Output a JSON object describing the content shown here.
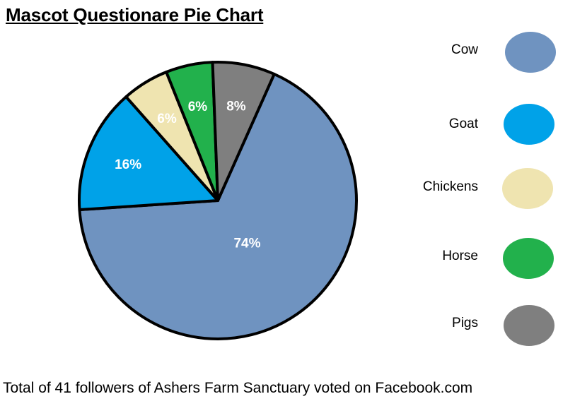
{
  "chart_data": {
    "type": "pie",
    "title": "Mascot Questionare Pie Chart",
    "slices": [
      {
        "label": "Cow",
        "value": 74,
        "display": "74%",
        "color": "#6F93C0"
      },
      {
        "label": "Goat",
        "value": 16,
        "display": "16%",
        "color": "#00A2E8"
      },
      {
        "label": "Chickens",
        "value": 6,
        "display": "6%",
        "color": "#EFE4B0"
      },
      {
        "label": "Horse",
        "value": 6,
        "display": "6%",
        "color": "#22B14C"
      },
      {
        "label": "Pigs",
        "value": 8,
        "display": "8%",
        "color": "#7F7F7F"
      }
    ],
    "legend_position": "right"
  },
  "footer": {
    "text": "Total of 41 followers of Ashers Farm Sanctuary voted on Facebook.com"
  }
}
